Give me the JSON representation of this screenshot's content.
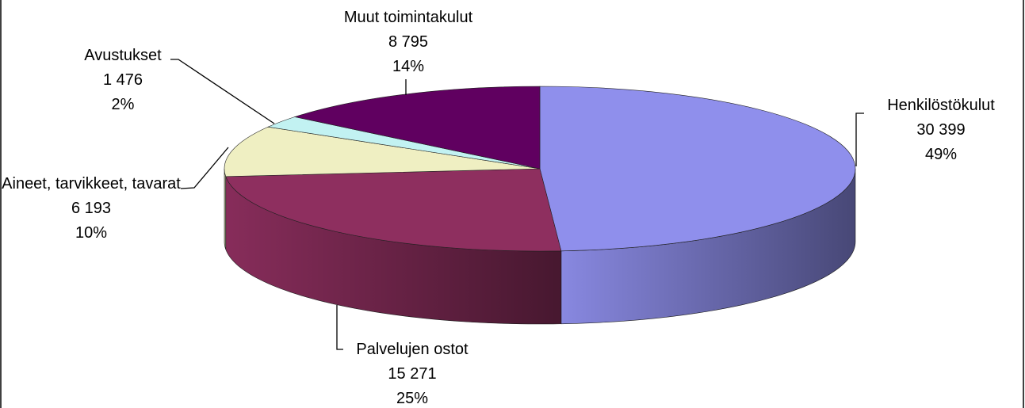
{
  "chart_data": {
    "type": "pie3d",
    "categories": [
      "Henkilöstökulut",
      "Palvelujen ostot",
      "Aineet, tarvikkeet, tavarat",
      "Avustukset",
      "Muut toimintakulut"
    ],
    "values": [
      30399,
      15271,
      6193,
      1476,
      8795
    ],
    "value_labels": [
      "30 399",
      "15 271",
      "6 193",
      "1 476",
      "8 795"
    ],
    "percent_labels": [
      "49%",
      "25%",
      "10%",
      "2%",
      "14%"
    ],
    "colors": [
      "#8f8fec",
      "#8e2f5f",
      "#efefc2",
      "#c2f2f2",
      "#600060"
    ]
  }
}
